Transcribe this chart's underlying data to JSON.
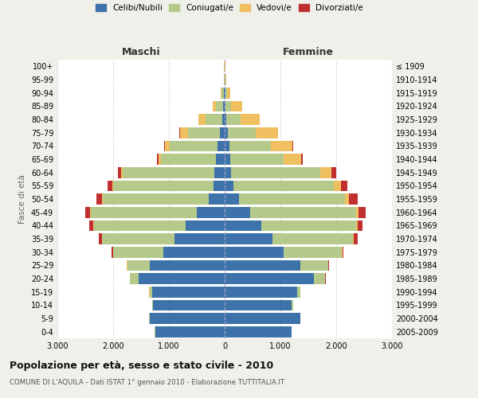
{
  "age_groups": [
    "0-4",
    "5-9",
    "10-14",
    "15-19",
    "20-24",
    "25-29",
    "30-34",
    "35-39",
    "40-44",
    "45-49",
    "50-54",
    "55-59",
    "60-64",
    "65-69",
    "70-74",
    "75-79",
    "80-84",
    "85-89",
    "90-94",
    "95-99",
    "100+"
  ],
  "birth_years": [
    "2005-2009",
    "2000-2004",
    "1995-1999",
    "1990-1994",
    "1985-1989",
    "1980-1984",
    "1975-1979",
    "1970-1974",
    "1965-1969",
    "1960-1964",
    "1955-1959",
    "1950-1954",
    "1945-1949",
    "1940-1944",
    "1935-1939",
    "1930-1934",
    "1925-1929",
    "1920-1924",
    "1915-1919",
    "1910-1914",
    "≤ 1909"
  ],
  "maschi": {
    "celibi": [
      1250,
      1350,
      1280,
      1300,
      1550,
      1350,
      1100,
      900,
      700,
      500,
      280,
      200,
      180,
      160,
      130,
      80,
      50,
      30,
      12,
      4,
      2
    ],
    "coniugati": [
      5,
      10,
      20,
      50,
      150,
      400,
      900,
      1300,
      1650,
      1900,
      1900,
      1800,
      1650,
      980,
      850,
      580,
      300,
      130,
      40,
      10,
      5
    ],
    "vedovi": [
      0,
      0,
      0,
      1,
      2,
      3,
      3,
      5,
      8,
      10,
      15,
      20,
      30,
      50,
      90,
      140,
      120,
      60,
      15,
      5,
      2
    ],
    "divorziati": [
      0,
      0,
      0,
      0,
      5,
      10,
      20,
      50,
      70,
      90,
      100,
      80,
      50,
      25,
      20,
      10,
      0,
      0,
      0,
      0,
      0
    ]
  },
  "femmine": {
    "nubili": [
      1200,
      1350,
      1200,
      1300,
      1600,
      1350,
      1050,
      850,
      650,
      450,
      250,
      160,
      120,
      100,
      80,
      50,
      30,
      20,
      8,
      4,
      2
    ],
    "coniugate": [
      5,
      10,
      25,
      60,
      200,
      500,
      1050,
      1450,
      1700,
      1900,
      1900,
      1800,
      1600,
      950,
      750,
      500,
      250,
      100,
      35,
      10,
      5
    ],
    "vedove": [
      0,
      0,
      1,
      2,
      5,
      8,
      10,
      20,
      30,
      50,
      80,
      120,
      200,
      320,
      380,
      400,
      350,
      200,
      60,
      15,
      5
    ],
    "divorziate": [
      0,
      0,
      0,
      0,
      5,
      10,
      25,
      60,
      90,
      130,
      150,
      120,
      80,
      30,
      20,
      10,
      0,
      0,
      0,
      0,
      0
    ]
  },
  "colors": {
    "celibi": "#3d72aa",
    "coniugati": "#b5c98a",
    "vedovi": "#f0c060",
    "divorziati": "#c03030"
  },
  "xlim": 3000,
  "title": "Popolazione per età, sesso e stato civile - 2010",
  "subtitle": "COMUNE DI L'AQUILA - Dati ISTAT 1° gennaio 2010 - Elaborazione TUTTITALIA.IT",
  "xlabel_left": "Maschi",
  "xlabel_right": "Femmine",
  "ylabel_left": "Fasce di età",
  "bg_color": "#f0f0eb",
  "plot_bg_color": "#ffffff",
  "legend_labels": [
    "Celibi/Nubili",
    "Coniugati/e",
    "Vedovi/e",
    "Divorziati/e"
  ]
}
